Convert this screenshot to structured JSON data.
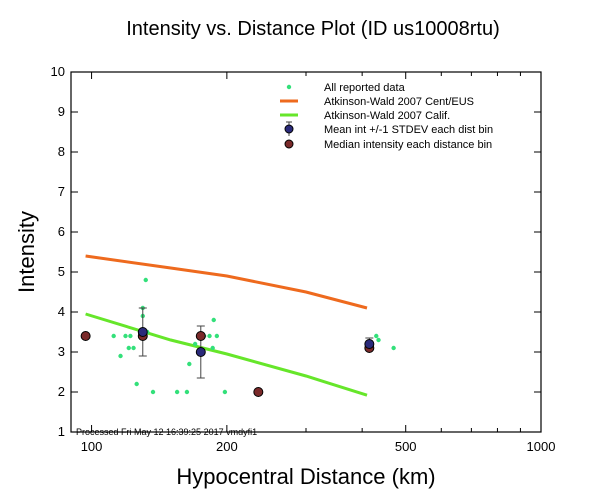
{
  "chart_data": {
    "type": "scatter",
    "title": "Intensity vs. Distance Plot (ID us10008rtu)",
    "xlabel": "Hypocentral Distance (km)",
    "ylabel": "Intensity",
    "x_scale": "log",
    "xlim": [
      90,
      1000
    ],
    "ylim": [
      1,
      10
    ],
    "x_ticks": [
      100,
      200,
      500,
      1000
    ],
    "y_ticks": [
      1,
      2,
      3,
      4,
      5,
      6,
      7,
      8,
      9,
      10
    ],
    "footnote": "Processed Fri May 12 16:39:25 2017 vmdyfi1",
    "legend_position": "top-right",
    "colors": {
      "reported": "#33e07a",
      "cent_eus": "#ee6a1e",
      "calif": "#66e62a",
      "mean": "#2a2a7a",
      "median": "#7a2a2a"
    },
    "series": [
      {
        "name": "All reported data",
        "kind": "points",
        "points": [
          [
            112,
            3.4
          ],
          [
            116,
            2.9
          ],
          [
            119,
            3.4
          ],
          [
            121,
            3.1
          ],
          [
            122,
            3.4
          ],
          [
            124,
            3.1
          ],
          [
            126,
            2.2
          ],
          [
            130,
            4.1
          ],
          [
            130,
            3.9
          ],
          [
            132,
            4.8
          ],
          [
            133,
            3.5
          ],
          [
            137,
            2.0
          ],
          [
            155,
            2.0
          ],
          [
            163,
            2.0
          ],
          [
            165,
            2.7
          ],
          [
            170,
            3.2
          ],
          [
            178,
            3.4
          ],
          [
            183,
            3.4
          ],
          [
            186,
            3.1
          ],
          [
            187,
            3.8
          ],
          [
            190,
            3.4
          ],
          [
            198,
            2.0
          ],
          [
            430,
            3.4
          ],
          [
            435,
            3.3
          ],
          [
            470,
            3.1
          ]
        ]
      },
      {
        "name": "Atkinson-Wald 2007 Cent/EUS",
        "kind": "line",
        "points": [
          [
            97,
            5.4
          ],
          [
            150,
            5.1
          ],
          [
            200,
            4.9
          ],
          [
            300,
            4.5
          ],
          [
            410,
            4.1
          ]
        ]
      },
      {
        "name": "Atkinson-Wald 2007 Calif.",
        "kind": "line",
        "points": [
          [
            97,
            3.95
          ],
          [
            150,
            3.3
          ],
          [
            200,
            2.95
          ],
          [
            300,
            2.4
          ],
          [
            410,
            1.92
          ]
        ]
      },
      {
        "name": "Mean int +/-1 STDEV each dist bin",
        "kind": "errorbar",
        "points": [
          [
            130,
            3.5,
            0.6
          ],
          [
            175,
            3.0,
            0.65
          ],
          [
            415,
            3.2,
            0.15
          ]
        ]
      },
      {
        "name": "Median intensity each distance bin",
        "kind": "points",
        "points": [
          [
            97,
            3.4
          ],
          [
            130,
            3.4
          ],
          [
            175,
            3.4
          ],
          [
            235,
            2.0
          ],
          [
            415,
            3.1
          ]
        ]
      }
    ]
  }
}
